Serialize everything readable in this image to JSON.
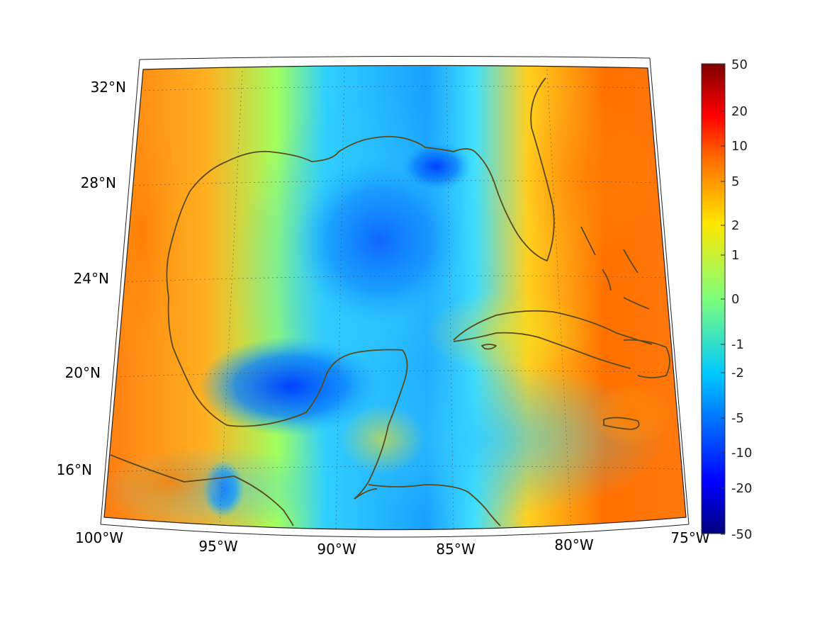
{
  "map": {
    "projection": "conic",
    "extent": {
      "lon_min": -100,
      "lon_max": -75,
      "lat_min": 14,
      "lat_max": 33
    },
    "grid": true,
    "coastline_color": "#5a4a1a",
    "longitude_ticks": [
      {
        "value": -100,
        "label": "100°W"
      },
      {
        "value": -95,
        "label": "95°W"
      },
      {
        "value": -90,
        "label": "90°W"
      },
      {
        "value": -85,
        "label": "85°W"
      },
      {
        "value": -80,
        "label": "80°W"
      },
      {
        "value": -75,
        "label": "75°W"
      }
    ],
    "latitude_ticks": [
      {
        "value": 32,
        "label": "32°N"
      },
      {
        "value": 28,
        "label": "28°N"
      },
      {
        "value": 24,
        "label": "24°N"
      },
      {
        "value": 20,
        "label": "20°N"
      },
      {
        "value": 16,
        "label": "16°N"
      }
    ]
  },
  "colorbar": {
    "colormap": "jet",
    "placement": "right",
    "scale": "symmetric-log",
    "ticks": [
      "50",
      "20",
      "10",
      "5",
      "2",
      "1",
      "0",
      "-1",
      "-2",
      "-5",
      "-10",
      "-20",
      "-50"
    ]
  }
}
